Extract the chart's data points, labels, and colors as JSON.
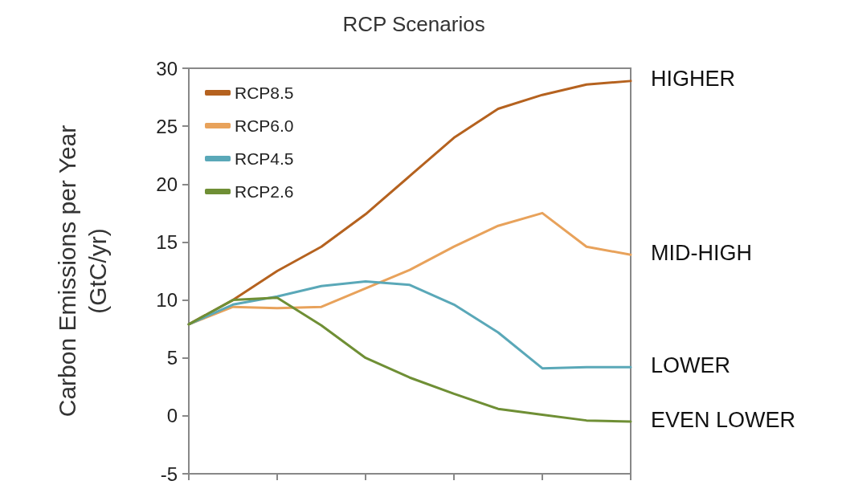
{
  "chart_data": {
    "type": "line",
    "title": "RCP Scenarios",
    "ylabel": "Carbon Emissions per Year\n(GtC/yr)",
    "categories": [
      null,
      null,
      null,
      null,
      null,
      null,
      null,
      null,
      null,
      null,
      null
    ],
    "ylim": [
      -5,
      30
    ],
    "yticks": [
      -5,
      0,
      5,
      10,
      15,
      20,
      25,
      30
    ],
    "tick_labels": "y",
    "grid": false,
    "legend": "top left",
    "marker": "none",
    "line_style": "solid",
    "series": [
      {
        "name": "RCP8.5",
        "color": "#b5621f",
        "values": [
          7.9,
          10.0,
          12.5,
          14.6,
          17.4,
          20.7,
          24.0,
          26.5,
          27.7,
          28.6,
          28.9
        ]
      },
      {
        "name": "RCP6.0",
        "color": "#e8a25b",
        "values": [
          7.9,
          9.4,
          9.3,
          9.4,
          11.0,
          12.6,
          14.6,
          16.4,
          17.5,
          14.6,
          13.9
        ]
      },
      {
        "name": "RCP4.5",
        "color": "#5aa8b8",
        "values": [
          7.9,
          9.6,
          10.3,
          11.2,
          11.6,
          11.3,
          9.6,
          7.2,
          4.1,
          4.2,
          4.2
        ]
      },
      {
        "name": "RCP2.6",
        "color": "#6f8f35",
        "values": [
          7.9,
          10.0,
          10.2,
          7.8,
          5.0,
          3.3,
          1.9,
          0.6,
          0.1,
          -0.4,
          -0.5
        ]
      }
    ],
    "annotations": [
      "HIGHER",
      "MID-HIGH",
      "LOWER",
      "EVEN LOWER"
    ]
  }
}
